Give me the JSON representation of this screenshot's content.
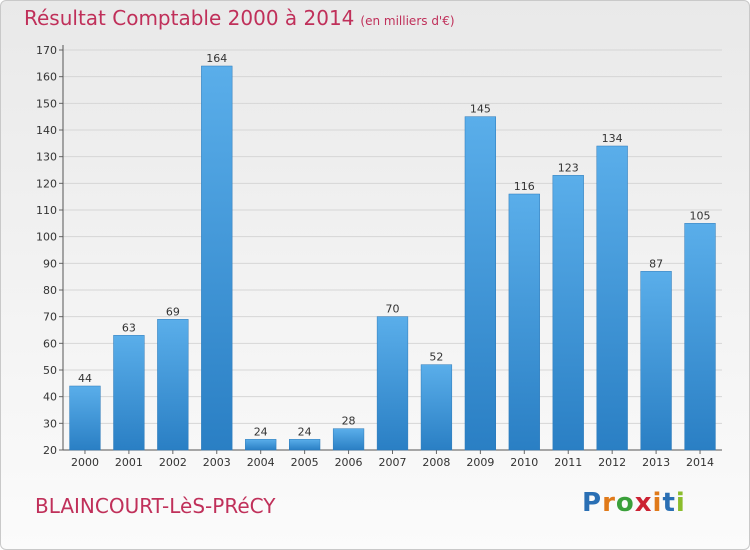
{
  "header": {
    "title": "Résultat Comptable 2000 à 2014",
    "unit": "(en milliers d'€)"
  },
  "footer": {
    "commune": "BLAINCOURT-LèS-PRéCY",
    "logo_letters": [
      "P",
      "r",
      "o",
      "x",
      "i",
      "t",
      "i"
    ],
    "logo_colors": [
      "#2a6fb4",
      "#e07a1a",
      "#3aa03a",
      "#cc2233",
      "#e07a1a",
      "#2a6fb4",
      "#8bbd2c"
    ]
  },
  "chart_data": {
    "type": "bar",
    "title": "Résultat Comptable 2000 à 2014",
    "ylabel": "",
    "xlabel": "",
    "categories": [
      "2000",
      "2001",
      "2002",
      "2003",
      "2004",
      "2005",
      "2006",
      "2007",
      "2008",
      "2009",
      "2010",
      "2011",
      "2012",
      "2013",
      "2014"
    ],
    "values": [
      44,
      63,
      69,
      164,
      24,
      24,
      28,
      70,
      52,
      145,
      116,
      123,
      134,
      87,
      105
    ],
    "ylim": [
      20,
      170
    ],
    "yticks": [
      20,
      30,
      40,
      50,
      60,
      70,
      80,
      90,
      100,
      110,
      120,
      130,
      140,
      150,
      160,
      170
    ],
    "grid": true,
    "bar_color_light": "#5aaeea",
    "bar_color_dark": "#2a7fc4"
  }
}
